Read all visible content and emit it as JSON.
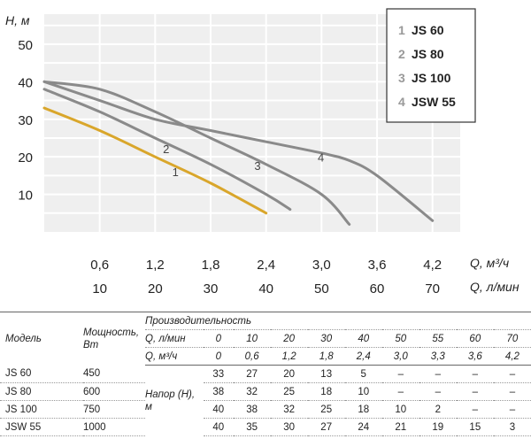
{
  "chart_data": {
    "type": "line",
    "y_axis": {
      "label": "H, м",
      "ticks": [
        10,
        20,
        30,
        40,
        50
      ],
      "range": [
        0,
        58
      ]
    },
    "x_axis": {
      "label_primary": "Q, м³/ч",
      "label_secondary": "Q, л/мин",
      "ticks_primary": [
        "0,6",
        "1,2",
        "1,8",
        "2,4",
        "3,0",
        "3,6",
        "4,2"
      ],
      "ticks_secondary": [
        "10",
        "20",
        "30",
        "40",
        "50",
        "60",
        "70"
      ],
      "range": [
        0,
        4.5
      ]
    },
    "grid": true,
    "legend_position": "top-right",
    "legend": [
      {
        "num": "1",
        "name": "JS 60"
      },
      {
        "num": "2",
        "name": "JS 80"
      },
      {
        "num": "3",
        "name": "JS 100"
      },
      {
        "num": "4",
        "name": "JSW 55"
      }
    ],
    "series": [
      {
        "name": "JS 60",
        "label": "1",
        "color": "#D9A62B",
        "x": [
          0,
          0.6,
          1.2,
          1.8,
          2.4
        ],
        "y": [
          33,
          27,
          20,
          13,
          5
        ]
      },
      {
        "name": "JS 80",
        "label": "2",
        "color": "#8a8a8a",
        "x": [
          0,
          0.6,
          1.2,
          1.8,
          2.4,
          2.66
        ],
        "y": [
          38,
          32,
          25,
          18,
          10,
          6
        ]
      },
      {
        "name": "JS 100",
        "label": "3",
        "color": "#8a8a8a",
        "x": [
          0,
          0.6,
          1.2,
          1.8,
          2.4,
          3.0,
          3.3
        ],
        "y": [
          40,
          38,
          32,
          25,
          18,
          10,
          2
        ]
      },
      {
        "name": "JSW 55",
        "label": "4",
        "color": "#8a8a8a",
        "x": [
          0,
          0.6,
          1.2,
          1.8,
          2.4,
          3.0,
          3.3,
          3.6,
          4.2
        ],
        "y": [
          40,
          35,
          30,
          27,
          24,
          21,
          19,
          15,
          3
        ]
      }
    ]
  },
  "table": {
    "productivity_header": "Производительность",
    "model_header": "Модель",
    "power_header": "Мощность, Вт",
    "q_lmin_label": "Q, л/мин",
    "q_m3h_label": "Q, м³/ч",
    "head_label": "Напор (H), м",
    "q_lmin": [
      "0",
      "10",
      "20",
      "30",
      "40",
      "50",
      "55",
      "60",
      "70"
    ],
    "q_m3h": [
      "0",
      "0,6",
      "1,2",
      "1,8",
      "2,4",
      "3,0",
      "3,3",
      "3,6",
      "4,2"
    ],
    "rows": [
      {
        "model": "JS 60",
        "power": "450",
        "values": [
          "33",
          "27",
          "20",
          "13",
          "5",
          "–",
          "–",
          "–",
          "–"
        ]
      },
      {
        "model": "JS 80",
        "power": "600",
        "values": [
          "38",
          "32",
          "25",
          "18",
          "10",
          "–",
          "–",
          "–",
          "–"
        ]
      },
      {
        "model": "JS 100",
        "power": "750",
        "values": [
          "40",
          "38",
          "32",
          "25",
          "18",
          "10",
          "2",
          "–",
          "–"
        ]
      },
      {
        "model": "JSW 55",
        "power": "1000",
        "values": [
          "40",
          "35",
          "30",
          "27",
          "24",
          "21",
          "19",
          "15",
          "3"
        ]
      }
    ]
  }
}
